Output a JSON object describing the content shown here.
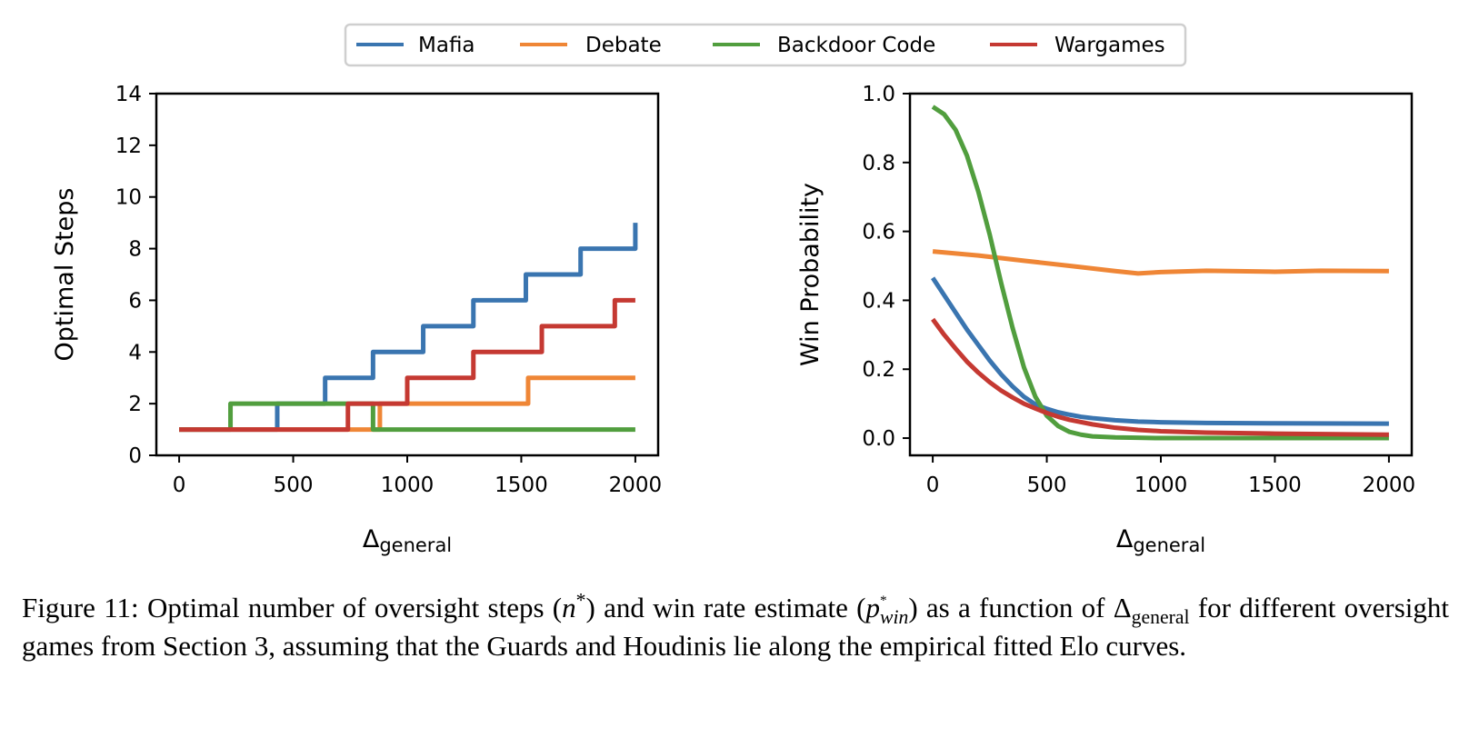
{
  "legend": [
    {
      "name": "Mafia",
      "color": "#3a75b0"
    },
    {
      "name": "Debate",
      "color": "#ef8636"
    },
    {
      "name": "Backdoor Code",
      "color": "#519e3e"
    },
    {
      "name": "Wargames",
      "color": "#c53932"
    }
  ],
  "chart_data": [
    {
      "type": "line",
      "title": "",
      "xlabel": "Δ",
      "xlabel_sub": "general",
      "ylabel": "Optimal Steps",
      "xlim": [
        -100,
        2100
      ],
      "ylim": [
        0,
        14
      ],
      "xticks": [
        0,
        500,
        1000,
        1500,
        2000
      ],
      "yticks": [
        0,
        2,
        4,
        6,
        8,
        10,
        12,
        14
      ],
      "step": true,
      "series": [
        {
          "name": "Mafia",
          "x": [
            0,
            430,
            640,
            850,
            1070,
            1290,
            1520,
            1760,
            2000
          ],
          "y": [
            1,
            2,
            3,
            4,
            5,
            6,
            7,
            8,
            9
          ]
        },
        {
          "name": "Debate",
          "x": [
            0,
            880,
            1530,
            2000
          ],
          "y": [
            1,
            2,
            3,
            3
          ]
        },
        {
          "name": "Backdoor Code",
          "x": [
            0,
            225,
            850,
            2000
          ],
          "y": [
            1,
            2,
            1,
            1
          ]
        },
        {
          "name": "Wargames",
          "x": [
            0,
            740,
            1000,
            1290,
            1590,
            1910,
            2000
          ],
          "y": [
            1,
            2,
            3,
            4,
            5,
            6,
            6
          ]
        }
      ]
    },
    {
      "type": "line",
      "title": "",
      "xlabel": "Δ",
      "xlabel_sub": "general",
      "ylabel": "Win Probability",
      "xlim": [
        -100,
        2100
      ],
      "ylim": [
        -0.05,
        1.0
      ],
      "xticks": [
        0,
        500,
        1000,
        1500,
        2000
      ],
      "yticks": [
        "0.0",
        "0.2",
        "0.4",
        "0.6",
        "0.8",
        "1.0"
      ],
      "series": [
        {
          "name": "Mafia",
          "x": [
            0,
            50,
            100,
            150,
            200,
            250,
            300,
            350,
            400,
            450,
            500,
            550,
            600,
            650,
            700,
            800,
            900,
            1000,
            1200,
            1500,
            2000
          ],
          "y": [
            0.465,
            0.415,
            0.365,
            0.315,
            0.27,
            0.225,
            0.185,
            0.15,
            0.12,
            0.098,
            0.085,
            0.075,
            0.068,
            0.062,
            0.058,
            0.052,
            0.048,
            0.046,
            0.044,
            0.043,
            0.042
          ]
        },
        {
          "name": "Debate",
          "x": [
            0,
            200,
            400,
            600,
            800,
            900,
            1000,
            1200,
            1500,
            1700,
            2000
          ],
          "y": [
            0.542,
            0.53,
            0.515,
            0.5,
            0.485,
            0.478,
            0.482,
            0.486,
            0.483,
            0.486,
            0.485
          ]
        },
        {
          "name": "Backdoor Code",
          "x": [
            0,
            50,
            100,
            150,
            200,
            250,
            300,
            350,
            400,
            450,
            500,
            550,
            600,
            650,
            700,
            800,
            900,
            1000,
            1500,
            2000
          ],
          "y": [
            0.962,
            0.94,
            0.895,
            0.82,
            0.715,
            0.59,
            0.45,
            0.32,
            0.205,
            0.12,
            0.065,
            0.035,
            0.018,
            0.01,
            0.005,
            0.002,
            0.001,
            0.0,
            0.0,
            0.0
          ]
        },
        {
          "name": "Wargames",
          "x": [
            0,
            50,
            100,
            150,
            200,
            250,
            300,
            350,
            400,
            450,
            500,
            550,
            600,
            700,
            800,
            900,
            1000,
            1200,
            1500,
            2000
          ],
          "y": [
            0.345,
            0.3,
            0.26,
            0.222,
            0.19,
            0.162,
            0.138,
            0.118,
            0.1,
            0.086,
            0.073,
            0.062,
            0.053,
            0.04,
            0.03,
            0.024,
            0.02,
            0.016,
            0.013,
            0.01
          ]
        }
      ]
    }
  ],
  "caption": {
    "label": "Figure 11:",
    "text1": "Optimal number of oversight steps (",
    "n_var": "n",
    "star": "*",
    "text2": ") and win rate estimate (",
    "p_var": "p",
    "p_sub": "win",
    "text3": ") as a function of",
    "delta": "Δ",
    "delta_sub": "general",
    "text4": "for different oversight games from Section 3, assuming that the Guards and Houdinis lie along the empirical fitted Elo curves."
  }
}
